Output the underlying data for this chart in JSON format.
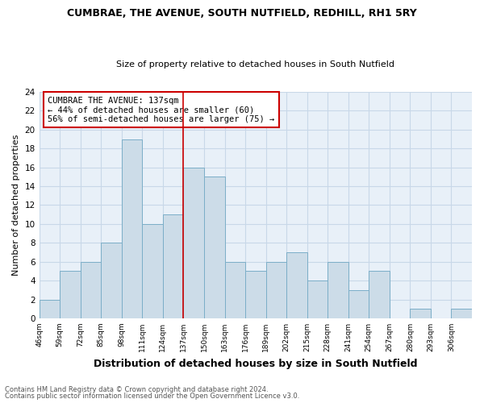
{
  "title": "CUMBRAE, THE AVENUE, SOUTH NUTFIELD, REDHILL, RH1 5RY",
  "subtitle": "Size of property relative to detached houses in South Nutfield",
  "xlabel": "Distribution of detached houses by size in South Nutfield",
  "ylabel": "Number of detached properties",
  "footnote1": "Contains HM Land Registry data © Crown copyright and database right 2024.",
  "footnote2": "Contains public sector information licensed under the Open Government Licence v3.0.",
  "bin_labels": [
    "46sqm",
    "59sqm",
    "72sqm",
    "85sqm",
    "98sqm",
    "111sqm",
    "124sqm",
    "137sqm",
    "150sqm",
    "163sqm",
    "176sqm",
    "189sqm",
    "202sqm",
    "215sqm",
    "228sqm",
    "241sqm",
    "254sqm",
    "267sqm",
    "280sqm",
    "293sqm",
    "306sqm"
  ],
  "bar_values": [
    2,
    5,
    6,
    8,
    19,
    10,
    11,
    16,
    15,
    6,
    5,
    6,
    7,
    4,
    6,
    3,
    5,
    0,
    1,
    0,
    1
  ],
  "bin_edges": [
    46,
    59,
    72,
    85,
    98,
    111,
    124,
    137,
    150,
    163,
    176,
    189,
    202,
    215,
    228,
    241,
    254,
    267,
    280,
    293,
    306,
    319
  ],
  "vline_x": 137,
  "vline_color": "#cc0000",
  "bar_facecolor": "#ccdce8",
  "bar_edgecolor": "#7baec8",
  "ylim": [
    0,
    24
  ],
  "yticks": [
    0,
    2,
    4,
    6,
    8,
    10,
    12,
    14,
    16,
    18,
    20,
    22,
    24
  ],
  "annotation_title": "CUMBRAE THE AVENUE: 137sqm",
  "annotation_line1": "← 44% of detached houses are smaller (60)",
  "annotation_line2": "56% of semi-detached houses are larger (75) →",
  "annotation_box_color": "#ffffff",
  "annotation_box_edgecolor": "#cc0000",
  "grid_color": "#c8d8e8",
  "background_color": "#e8f0f8",
  "title_fontsize": 9,
  "subtitle_fontsize": 8
}
